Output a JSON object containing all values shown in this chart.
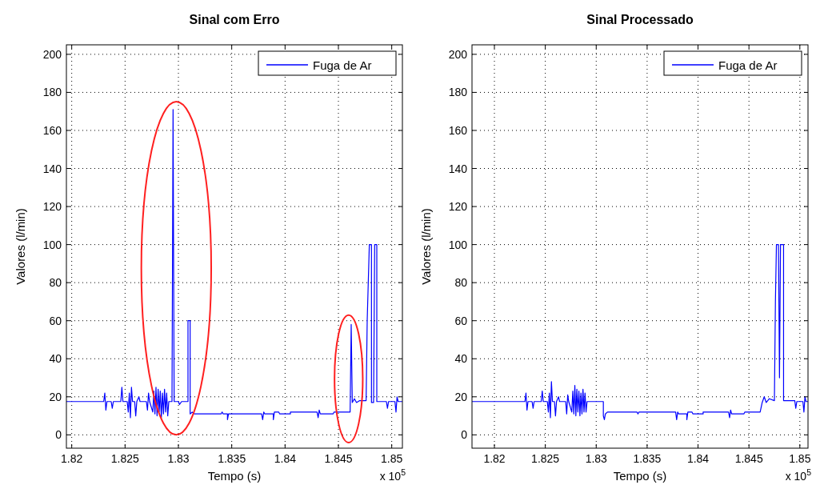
{
  "chart_data": [
    {
      "type": "line",
      "title": "Sinal com Erro",
      "xlabel": "Tempo (s)",
      "ylabel": "Valores (l/min)",
      "xlim": [
        1.8195,
        1.851
      ],
      "xticks": [
        1.82,
        1.825,
        1.83,
        1.835,
        1.84,
        1.845,
        1.85
      ],
      "ylim": [
        -7,
        205
      ],
      "yticks": [
        0,
        20,
        40,
        60,
        80,
        100,
        120,
        140,
        160,
        180,
        200
      ],
      "grid": true,
      "legend": "top right",
      "annotations": [
        "x 10$^{5}$"
      ],
      "series": [
        {
          "name": "Fuga de Ar",
          "color": "#0000ff",
          "x": [
            1.8195,
            1.823,
            1.8231,
            1.8232,
            1.8233,
            1.8237,
            1.8238,
            1.8239,
            1.8246,
            1.8247,
            1.8248,
            1.8252,
            1.8253,
            1.8254,
            1.8255,
            1.8256,
            1.8257,
            1.8259,
            1.826,
            1.8261,
            1.8263,
            1.8264,
            1.827,
            1.8271,
            1.8272,
            1.8273,
            1.8276,
            1.8277,
            1.8278,
            1.8279,
            1.828,
            1.8281,
            1.8282,
            1.8283,
            1.8284,
            1.8285,
            1.8286,
            1.8287,
            1.8288,
            1.8289,
            1.829,
            1.8291,
            1.8294,
            1.8295,
            1.8296,
            1.83,
            1.8301,
            1.8303,
            1.8309,
            1.8309,
            1.8311,
            1.8311,
            1.8313,
            1.8315,
            1.834,
            1.8341,
            1.8342,
            1.8346,
            1.8346,
            1.8347,
            1.8378,
            1.8379,
            1.838,
            1.8381,
            1.8389,
            1.8389,
            1.839,
            1.8394,
            1.8395,
            1.8405,
            1.8405,
            1.843,
            1.8431,
            1.8432,
            1.8433,
            1.8445,
            1.8446,
            1.8461,
            1.8462,
            1.8463,
            1.8465,
            1.8467,
            1.847,
            1.8476,
            1.8477,
            1.8478,
            1.8479,
            1.8481,
            1.8481,
            1.8483,
            1.8484,
            1.8486,
            1.8486,
            1.8495,
            1.8496,
            1.8497,
            1.8503,
            1.8504,
            1.8505,
            1.8506,
            1.851
          ],
          "values": [
            17.5,
            17.5,
            22,
            13,
            17.5,
            17.5,
            14,
            17.5,
            17.5,
            25,
            17.5,
            17.5,
            12,
            22,
            9,
            25,
            17.5,
            17.5,
            10,
            17.5,
            20,
            17.5,
            17.5,
            13,
            22,
            17.5,
            12,
            23,
            11,
            25,
            10,
            24,
            12,
            23,
            9,
            22,
            11,
            24,
            12,
            22,
            10,
            17.5,
            17.5,
            171,
            17.5,
            17.5,
            16,
            17.5,
            17.5,
            60,
            60,
            11,
            12,
            11,
            11,
            12,
            11,
            11,
            8,
            11,
            11,
            8,
            12,
            11,
            11,
            8,
            12,
            12,
            11,
            11,
            12,
            12,
            9,
            13,
            11,
            11,
            12,
            12,
            58,
            17,
            19,
            17,
            18,
            18,
            60,
            80,
            100,
            100,
            17,
            17,
            100,
            100,
            17.5,
            17.5,
            14,
            17.5,
            17.5,
            12,
            20,
            17.5,
            17.5
          ]
        }
      ]
    },
    {
      "type": "line",
      "title": "Sinal Processado",
      "xlabel": "Tempo (s)",
      "ylabel": "Valores (l/min)",
      "xlim": [
        1.8178,
        1.8508
      ],
      "xticks": [
        1.82,
        1.825,
        1.83,
        1.835,
        1.84,
        1.845,
        1.85
      ],
      "ylim": [
        -7,
        205
      ],
      "yticks": [
        0,
        20,
        40,
        60,
        80,
        100,
        120,
        140,
        160,
        180,
        200
      ],
      "grid": true,
      "legend": "top right",
      "annotations": [
        "x 10$^{5}$"
      ],
      "series": [
        {
          "name": "Fuga de Ar",
          "color": "#0000ff",
          "x": [
            1.8178,
            1.823,
            1.8231,
            1.8232,
            1.8233,
            1.8237,
            1.8238,
            1.8239,
            1.8246,
            1.8247,
            1.8248,
            1.8252,
            1.8253,
            1.8254,
            1.8255,
            1.8256,
            1.8257,
            1.8259,
            1.826,
            1.8261,
            1.8263,
            1.8264,
            1.827,
            1.8271,
            1.8272,
            1.8273,
            1.8276,
            1.8277,
            1.8278,
            1.8279,
            1.828,
            1.8281,
            1.8282,
            1.8283,
            1.8284,
            1.8285,
            1.8286,
            1.8287,
            1.8288,
            1.8289,
            1.829,
            1.8291,
            1.8307,
            1.8307,
            1.8308,
            1.8309,
            1.8311,
            1.834,
            1.8341,
            1.8342,
            1.8378,
            1.8379,
            1.838,
            1.8381,
            1.8389,
            1.8389,
            1.839,
            1.8394,
            1.8395,
            1.8405,
            1.8405,
            1.843,
            1.8431,
            1.8432,
            1.8433,
            1.8445,
            1.8446,
            1.8461,
            1.8463,
            1.8465,
            1.8467,
            1.847,
            1.8475,
            1.8476,
            1.8477,
            1.8479,
            1.848,
            1.8481,
            1.8484,
            1.8484,
            1.8495,
            1.8496,
            1.8497,
            1.8503,
            1.8504,
            1.8505,
            1.8506,
            1.8508
          ],
          "values": [
            17.5,
            17.5,
            22,
            13,
            17.5,
            17.5,
            14,
            17.5,
            17.5,
            23,
            17.5,
            17.5,
            12,
            22,
            9,
            28,
            17.5,
            17.5,
            10,
            17.5,
            20,
            17.5,
            17.5,
            11,
            21,
            17.5,
            12,
            23,
            11,
            26,
            10,
            24,
            12,
            23,
            10,
            22,
            11,
            24,
            12,
            22,
            12,
            17.5,
            17.5,
            10,
            8,
            11,
            12,
            12,
            11,
            12,
            12,
            8,
            12,
            11,
            11,
            8,
            12,
            12,
            11,
            11,
            12,
            12,
            9,
            13,
            11,
            11,
            12,
            12,
            17,
            20,
            17,
            19,
            18,
            70,
            100,
            100,
            30,
            100,
            100,
            18,
            18,
            14,
            17.5,
            17.5,
            12,
            20,
            17.5,
            17.5
          ]
        }
      ]
    }
  ]
}
